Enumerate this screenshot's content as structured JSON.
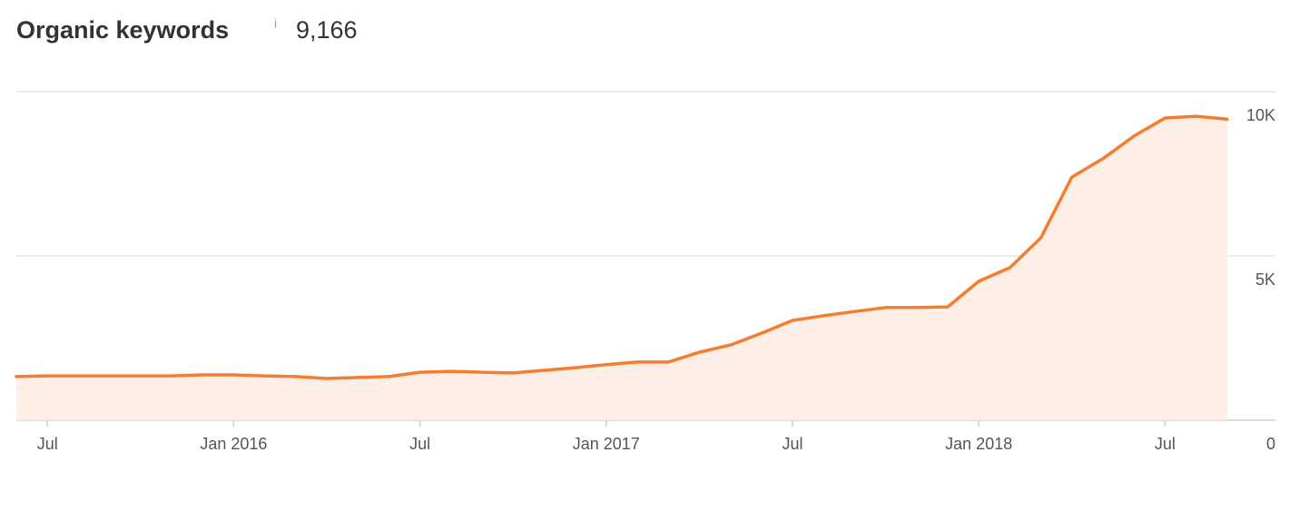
{
  "chart_data": {
    "type": "area",
    "title": "Organic keywords",
    "info": "i",
    "total": {
      "value": 9166,
      "label": "9,166"
    },
    "x": [
      "2015-06",
      "2015-07",
      "2015-08",
      "2015-09",
      "2015-10",
      "2015-11",
      "2015-12",
      "2016-01",
      "2016-02",
      "2016-03",
      "2016-04",
      "2016-05",
      "2016-06",
      "2016-07",
      "2016-08",
      "2016-09",
      "2016-10",
      "2016-11",
      "2016-12",
      "2017-01",
      "2017-02",
      "2017-03",
      "2017-04",
      "2017-05",
      "2017-06",
      "2017-07",
      "2017-08",
      "2017-09",
      "2017-10",
      "2017-11",
      "2017-12",
      "2018-01",
      "2018-02",
      "2018-03",
      "2018-04",
      "2018-05",
      "2018-06",
      "2018-07",
      "2018-08",
      "2018-09"
    ],
    "series": [
      {
        "name": "Organic keywords",
        "color": "#f47d30",
        "fill": "#fdeee6",
        "values": [
          1330,
          1350,
          1350,
          1350,
          1350,
          1350,
          1380,
          1380,
          1350,
          1330,
          1270,
          1300,
          1330,
          1460,
          1490,
          1460,
          1440,
          1520,
          1600,
          1690,
          1770,
          1770,
          2070,
          2290,
          2650,
          3040,
          3180,
          3310,
          3430,
          3430,
          3450,
          4230,
          4640,
          5550,
          7400,
          7960,
          8650,
          9200,
          9250,
          9166
        ]
      }
    ],
    "xlim": [
      "2015-06",
      "2018-10"
    ],
    "xticks": [
      {
        "value": "2015-07",
        "label": "Jul"
      },
      {
        "value": "2016-01",
        "label": "Jan 2016"
      },
      {
        "value": "2016-07",
        "label": "Jul"
      },
      {
        "value": "2017-01",
        "label": "Jan 2017"
      },
      {
        "value": "2017-07",
        "label": "Jul"
      },
      {
        "value": "2018-01",
        "label": "Jan 2018"
      },
      {
        "value": "2018-07",
        "label": "Jul"
      }
    ],
    "ylim": [
      0,
      10000
    ],
    "yticks": [
      0,
      {
        "value": 5000,
        "label": "5K"
      },
      {
        "value": 10000,
        "label": "10K"
      }
    ],
    "grid": true
  }
}
